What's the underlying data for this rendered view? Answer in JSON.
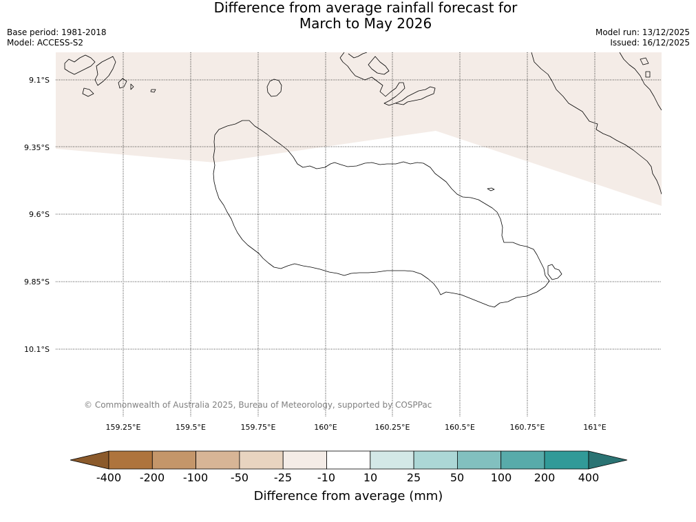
{
  "title": {
    "line1": "Difference from average rainfall forecast for",
    "line2": "March to May 2026"
  },
  "meta_left": {
    "base_period": "Base period: 1981-2018",
    "model": "Model: ACCESS-S2"
  },
  "meta_right": {
    "model_run": "Model run: 13/12/2025",
    "issued": "Issued: 16/12/2025"
  },
  "map": {
    "lat_labels": [
      "9.1°S",
      "9.35°S",
      "9.6°S",
      "9.85°S",
      "10.1°S"
    ],
    "lon_labels": [
      "159.25°E",
      "159.5°E",
      "159.75°E",
      "160°E",
      "160.25°E",
      "160.5°E",
      "160.75°E",
      "161°E"
    ],
    "copyright": "© Commonwealth of Australia 2025, Bureau of Meteorology, supported by COSPPac",
    "forecast_fill_color": "#f4ece7",
    "coastline_color": "#000000"
  },
  "colorbar": {
    "title": "Difference from average (mm)",
    "tick_labels": [
      "-400",
      "-200",
      "-100",
      "-50",
      "-25",
      "-10",
      "10",
      "25",
      "50",
      "100",
      "200",
      "400"
    ],
    "under_color": "#8b5a2b",
    "over_color": "#2a7373",
    "bin_colors": [
      "#ae743d",
      "#c4966a",
      "#d7b596",
      "#e8d4c0",
      "#f4ece7",
      "#ffffff",
      "#d3e8e7",
      "#acd7d6",
      "#82c0bf",
      "#58abaa",
      "#319a98"
    ]
  }
}
